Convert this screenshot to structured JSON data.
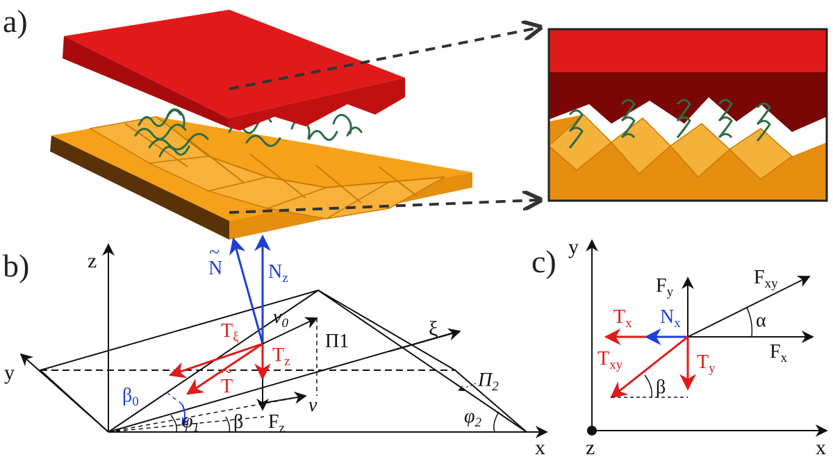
{
  "panels": {
    "a": {
      "label": "a)"
    },
    "b": {
      "label": "b)",
      "axes": {
        "z": "z",
        "y": "y",
        "x": "x",
        "xi": "ξ"
      },
      "vectors": {
        "n_tilde": {
          "base": "N",
          "accent": "~",
          "color": "#1f3fd6"
        },
        "n_z": {
          "base": "N",
          "sub": "z",
          "color": "#1f3fd6"
        },
        "t_xi": {
          "base": "T",
          "sub": "ξ",
          "color": "#e01a1a"
        },
        "t_z": {
          "base": "T",
          "sub": "z",
          "color": "#e01a1a"
        },
        "t_tilde": {
          "base": "T",
          "accent": "~",
          "color": "#e01a1a"
        },
        "v0": {
          "base": "v",
          "sub": "0"
        },
        "v": {
          "base": "v"
        },
        "f_z": {
          "base": "F",
          "sub": "z"
        }
      },
      "angles": {
        "beta0": {
          "base": "β",
          "sub": "0",
          "color": "#1f3fd6"
        },
        "phi1": {
          "base": "φ",
          "sub": "1"
        },
        "beta": {
          "base": "β"
        },
        "phi2": {
          "base": "φ",
          "sub": "2"
        }
      },
      "planes": {
        "pi1": {
          "base": "Π",
          "sub": "1"
        },
        "pi2": {
          "base": "Π",
          "sub": "2"
        }
      }
    },
    "c": {
      "label": "c)",
      "axes": {
        "y": "y",
        "x": "x",
        "z": "z"
      },
      "vectors": {
        "f_y": {
          "base": "F",
          "sub": "y"
        },
        "f_xy": {
          "base": "F",
          "sub": "xy"
        },
        "f_x": {
          "base": "F",
          "sub": "x"
        },
        "t_x": {
          "base": "T",
          "sub": "x",
          "color": "#e01a1a"
        },
        "n_x": {
          "base": "N",
          "sub": "x",
          "color": "#1f3fd6"
        },
        "t_xy": {
          "base": "T",
          "sub": "xy",
          "color": "#e01a1a"
        },
        "t_y": {
          "base": "T",
          "sub": "y",
          "color": "#e01a1a"
        }
      },
      "angles": {
        "alpha": "α",
        "beta": "β"
      }
    }
  },
  "colors": {
    "red_top": "#e01a1a",
    "red_side": "#a80b0b",
    "orange_top": "#f5a21a",
    "orange_side": "#e08a0c",
    "orange_dark": "#5a3208",
    "hook_green": "#2f6b44",
    "blue": "#1f3fd6",
    "red": "#e01a1a"
  }
}
